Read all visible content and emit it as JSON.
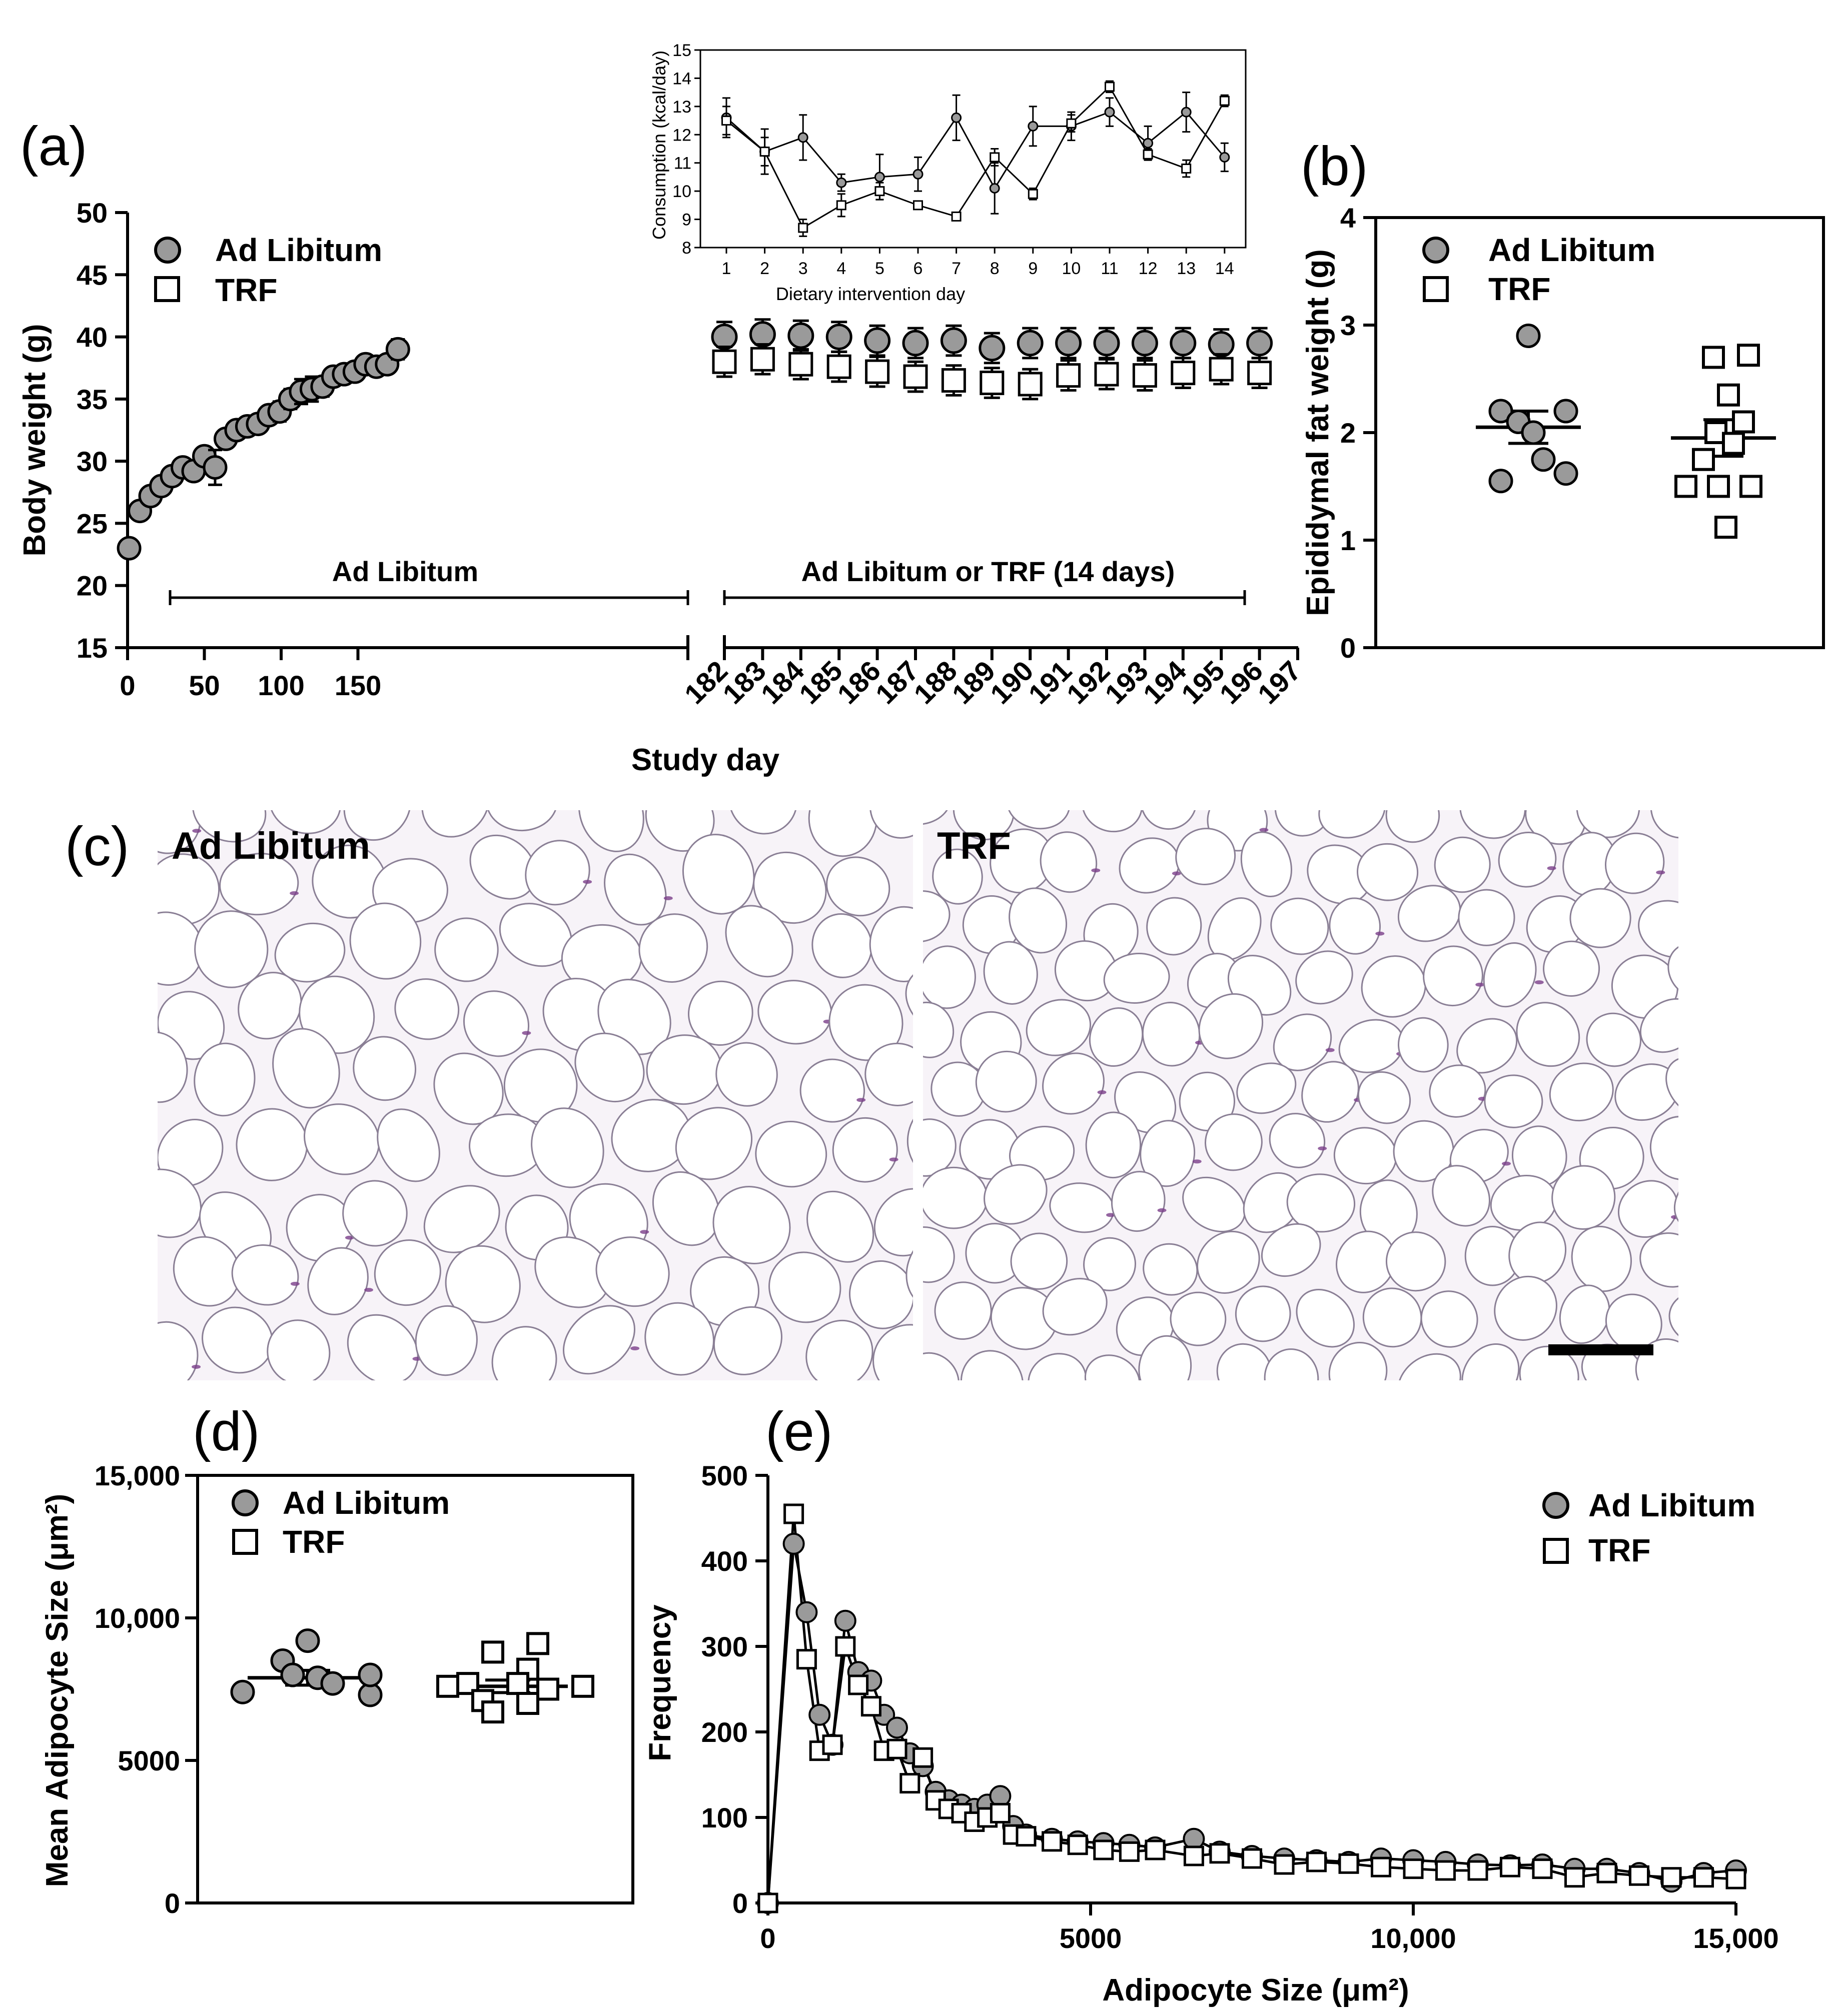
{
  "panels": {
    "a": "(a)",
    "b": "(b)",
    "c": "(c)",
    "d": "(d)",
    "e": "(e)"
  },
  "legend": {
    "adlib": "Ad Libitum",
    "trf": "TRF"
  },
  "colors": {
    "adlib_fill": "#9a9a9a",
    "trf_fill": "#ffffff",
    "stroke": "#000000"
  },
  "chart_data": [
    {
      "id": "a",
      "type": "scatter",
      "xlabel": "Study day",
      "ylabel": "Body weight (g)",
      "ylim": [
        15,
        50
      ],
      "yticks": [
        15,
        20,
        25,
        30,
        35,
        40,
        45,
        50
      ],
      "xticks_left": [
        0,
        50,
        100,
        150
      ],
      "xticks_right": [
        182,
        183,
        184,
        185,
        186,
        187,
        188,
        189,
        190,
        191,
        192,
        193,
        194,
        195,
        196,
        197
      ],
      "period_labels": [
        "Ad Libitum",
        "Ad Libitum or TRF (14 days)"
      ],
      "baseline": {
        "name": "Ad Libitum",
        "x": [
          1,
          8,
          15,
          22,
          29,
          36,
          43,
          50,
          57,
          64,
          71,
          78,
          85,
          92,
          99,
          106,
          113,
          120,
          127,
          134,
          141,
          148,
          155,
          162,
          169,
          176
        ],
        "y": [
          23.0,
          26.0,
          27.2,
          28.0,
          28.8,
          29.5,
          29.2,
          30.4,
          29.5,
          31.8,
          32.5,
          32.8,
          33.0,
          33.7,
          34.0,
          35.0,
          35.6,
          35.8,
          36.0,
          36.8,
          37.0,
          37.2,
          37.8,
          37.6,
          37.8,
          39.0
        ],
        "err": [
          0.3,
          0.3,
          0.3,
          0.3,
          0.3,
          0.3,
          0.3,
          0.4,
          1.4,
          0.4,
          0.6,
          0.6,
          0.6,
          0.6,
          0.8,
          0.8,
          1.0,
          1.0,
          0.8,
          0.6,
          0.6,
          0.6,
          0.6,
          0.6,
          0.6,
          0.8
        ]
      },
      "series": [
        {
          "name": "Ad Libitum",
          "x": [
            182,
            183,
            184,
            185,
            186,
            187,
            188,
            189,
            190,
            191,
            192,
            193,
            194,
            195,
            196
          ],
          "values": [
            40.0,
            40.2,
            40.1,
            40.0,
            39.7,
            39.5,
            39.7,
            39.1,
            39.5,
            39.5,
            39.5,
            39.5,
            39.5,
            39.4,
            39.5
          ],
          "err": [
            1.2,
            1.2,
            1.2,
            1.2,
            1.2,
            1.2,
            1.2,
            1.2,
            1.2,
            1.2,
            1.2,
            1.2,
            1.2,
            1.2,
            1.2
          ]
        },
        {
          "name": "TRF",
          "x": [
            182,
            183,
            184,
            185,
            186,
            187,
            188,
            189,
            190,
            191,
            192,
            193,
            194,
            195,
            196
          ],
          "values": [
            38.0,
            38.2,
            37.8,
            37.6,
            37.2,
            36.8,
            36.5,
            36.3,
            36.2,
            36.9,
            37.0,
            36.9,
            37.1,
            37.4,
            37.1
          ],
          "err": [
            1.2,
            1.2,
            1.2,
            1.2,
            1.2,
            1.2,
            1.2,
            1.2,
            1.2,
            1.2,
            1.2,
            1.2,
            1.2,
            1.2,
            1.2
          ]
        }
      ]
    },
    {
      "id": "a-inset",
      "type": "line",
      "xlabel": "Dietary intervention day",
      "ylabel": "Consumption (kcal/day)",
      "x": [
        1,
        2,
        3,
        4,
        5,
        6,
        7,
        8,
        9,
        10,
        11,
        12,
        13,
        14
      ],
      "ylim": [
        8,
        15
      ],
      "yticks": [
        8,
        9,
        10,
        11,
        12,
        13,
        14,
        15
      ],
      "series": [
        {
          "name": "Ad Libitum",
          "values": [
            12.6,
            11.4,
            11.9,
            10.3,
            10.5,
            10.6,
            12.6,
            10.1,
            12.3,
            12.3,
            12.8,
            11.7,
            12.8,
            11.2
          ],
          "err": [
            0.7,
            0.8,
            0.8,
            0.3,
            0.8,
            0.6,
            0.8,
            0.9,
            0.7,
            0.5,
            0.5,
            0.6,
            0.7,
            0.5
          ]
        },
        {
          "name": "TRF",
          "values": [
            12.5,
            11.4,
            8.7,
            9.5,
            10.0,
            9.5,
            9.1,
            11.2,
            9.9,
            12.4,
            13.7,
            11.3,
            10.8,
            13.2
          ],
          "err": [
            0.5,
            0.5,
            0.3,
            0.4,
            0.3,
            0.1,
            0.1,
            0.3,
            0.2,
            0.3,
            0.2,
            0.2,
            0.3,
            0.2
          ]
        }
      ]
    },
    {
      "id": "b",
      "type": "scatter",
      "ylabel": "Epididymal fat weight (g)",
      "ylim": [
        0,
        4
      ],
      "yticks": [
        0,
        1,
        2,
        3,
        4
      ],
      "series": [
        {
          "name": "Ad Libitum",
          "values": [
            2.9,
            2.2,
            2.1,
            2.2,
            1.55,
            1.75,
            1.62,
            2.0
          ],
          "mean": 2.05,
          "sem": 0.15
        },
        {
          "name": "TRF",
          "values": [
            2.7,
            2.72,
            2.35,
            2.1,
            2.0,
            1.9,
            1.75,
            1.5,
            1.5,
            1.5,
            1.12
          ],
          "mean": 1.95,
          "sem": 0.17
        }
      ]
    },
    {
      "id": "d",
      "type": "scatter",
      "ylabel": "Mean Adipocyte Size (μm²)",
      "ylim": [
        0,
        15000
      ],
      "yticks": [
        0,
        5000,
        10000,
        15000
      ],
      "ytick_labels": [
        "0",
        "5000",
        "10,000",
        "15,000"
      ],
      "series": [
        {
          "name": "Ad Libitum",
          "values": [
            9200,
            8500,
            8000,
            7900,
            7700,
            7400,
            7300,
            8000
          ],
          "mean": 7900,
          "sem": 260
        },
        {
          "name": "TRF",
          "values": [
            9100,
            8800,
            8200,
            7700,
            7700,
            7600,
            7500,
            7100,
            7000,
            6700,
            7600
          ],
          "mean": 7600,
          "sem": 220
        }
      ]
    },
    {
      "id": "e",
      "type": "line",
      "xlabel": "Adipocyte Size (μm²)",
      "ylabel": "Frequency",
      "xlim": [
        0,
        15000
      ],
      "ylim": [
        0,
        500
      ],
      "xticks": [
        0,
        5000,
        10000,
        15000
      ],
      "xtick_labels": [
        "0",
        "5000",
        "10,000",
        "15,000"
      ],
      "yticks": [
        0,
        100,
        200,
        300,
        400,
        500
      ],
      "series": [
        {
          "name": "Ad Libitum",
          "x": [
            0,
            400,
            600,
            800,
            1000,
            1200,
            1400,
            1600,
            1800,
            2000,
            2200,
            2400,
            2600,
            2800,
            3000,
            3200,
            3400,
            3600,
            3800,
            4000,
            4400,
            4800,
            5200,
            5600,
            6000,
            6600,
            7000,
            7500,
            8000,
            8500,
            9000,
            9500,
            10000,
            10500,
            11000,
            11500,
            12000,
            12500,
            13000,
            13500,
            14000,
            14500,
            15000
          ],
          "values": [
            0,
            420,
            340,
            220,
            185,
            330,
            270,
            260,
            220,
            205,
            175,
            160,
            130,
            120,
            115,
            110,
            115,
            125,
            90,
            80,
            75,
            72,
            70,
            68,
            65,
            75,
            60,
            55,
            52,
            50,
            48,
            52,
            50,
            48,
            45,
            44,
            45,
            40,
            40,
            35,
            25,
            35,
            38
          ]
        },
        {
          "name": "TRF",
          "x": [
            0,
            400,
            600,
            800,
            1000,
            1200,
            1400,
            1600,
            1800,
            2000,
            2200,
            2400,
            2600,
            2800,
            3000,
            3200,
            3400,
            3600,
            3800,
            4000,
            4400,
            4800,
            5200,
            5600,
            6000,
            6600,
            7000,
            7500,
            8000,
            8500,
            9000,
            9500,
            10000,
            10500,
            11000,
            11500,
            12000,
            12500,
            13000,
            13500,
            14000,
            14500,
            15000
          ],
          "values": [
            0,
            455,
            285,
            178,
            185,
            300,
            255,
            230,
            178,
            180,
            140,
            170,
            120,
            110,
            105,
            95,
            100,
            105,
            80,
            78,
            72,
            68,
            62,
            60,
            62,
            55,
            58,
            52,
            45,
            48,
            46,
            42,
            40,
            38,
            38,
            42,
            40,
            30,
            35,
            32,
            30,
            30,
            28
          ]
        }
      ]
    }
  ],
  "micrographs": {
    "left_title": "Ad Libitum",
    "right_title": "TRF"
  }
}
